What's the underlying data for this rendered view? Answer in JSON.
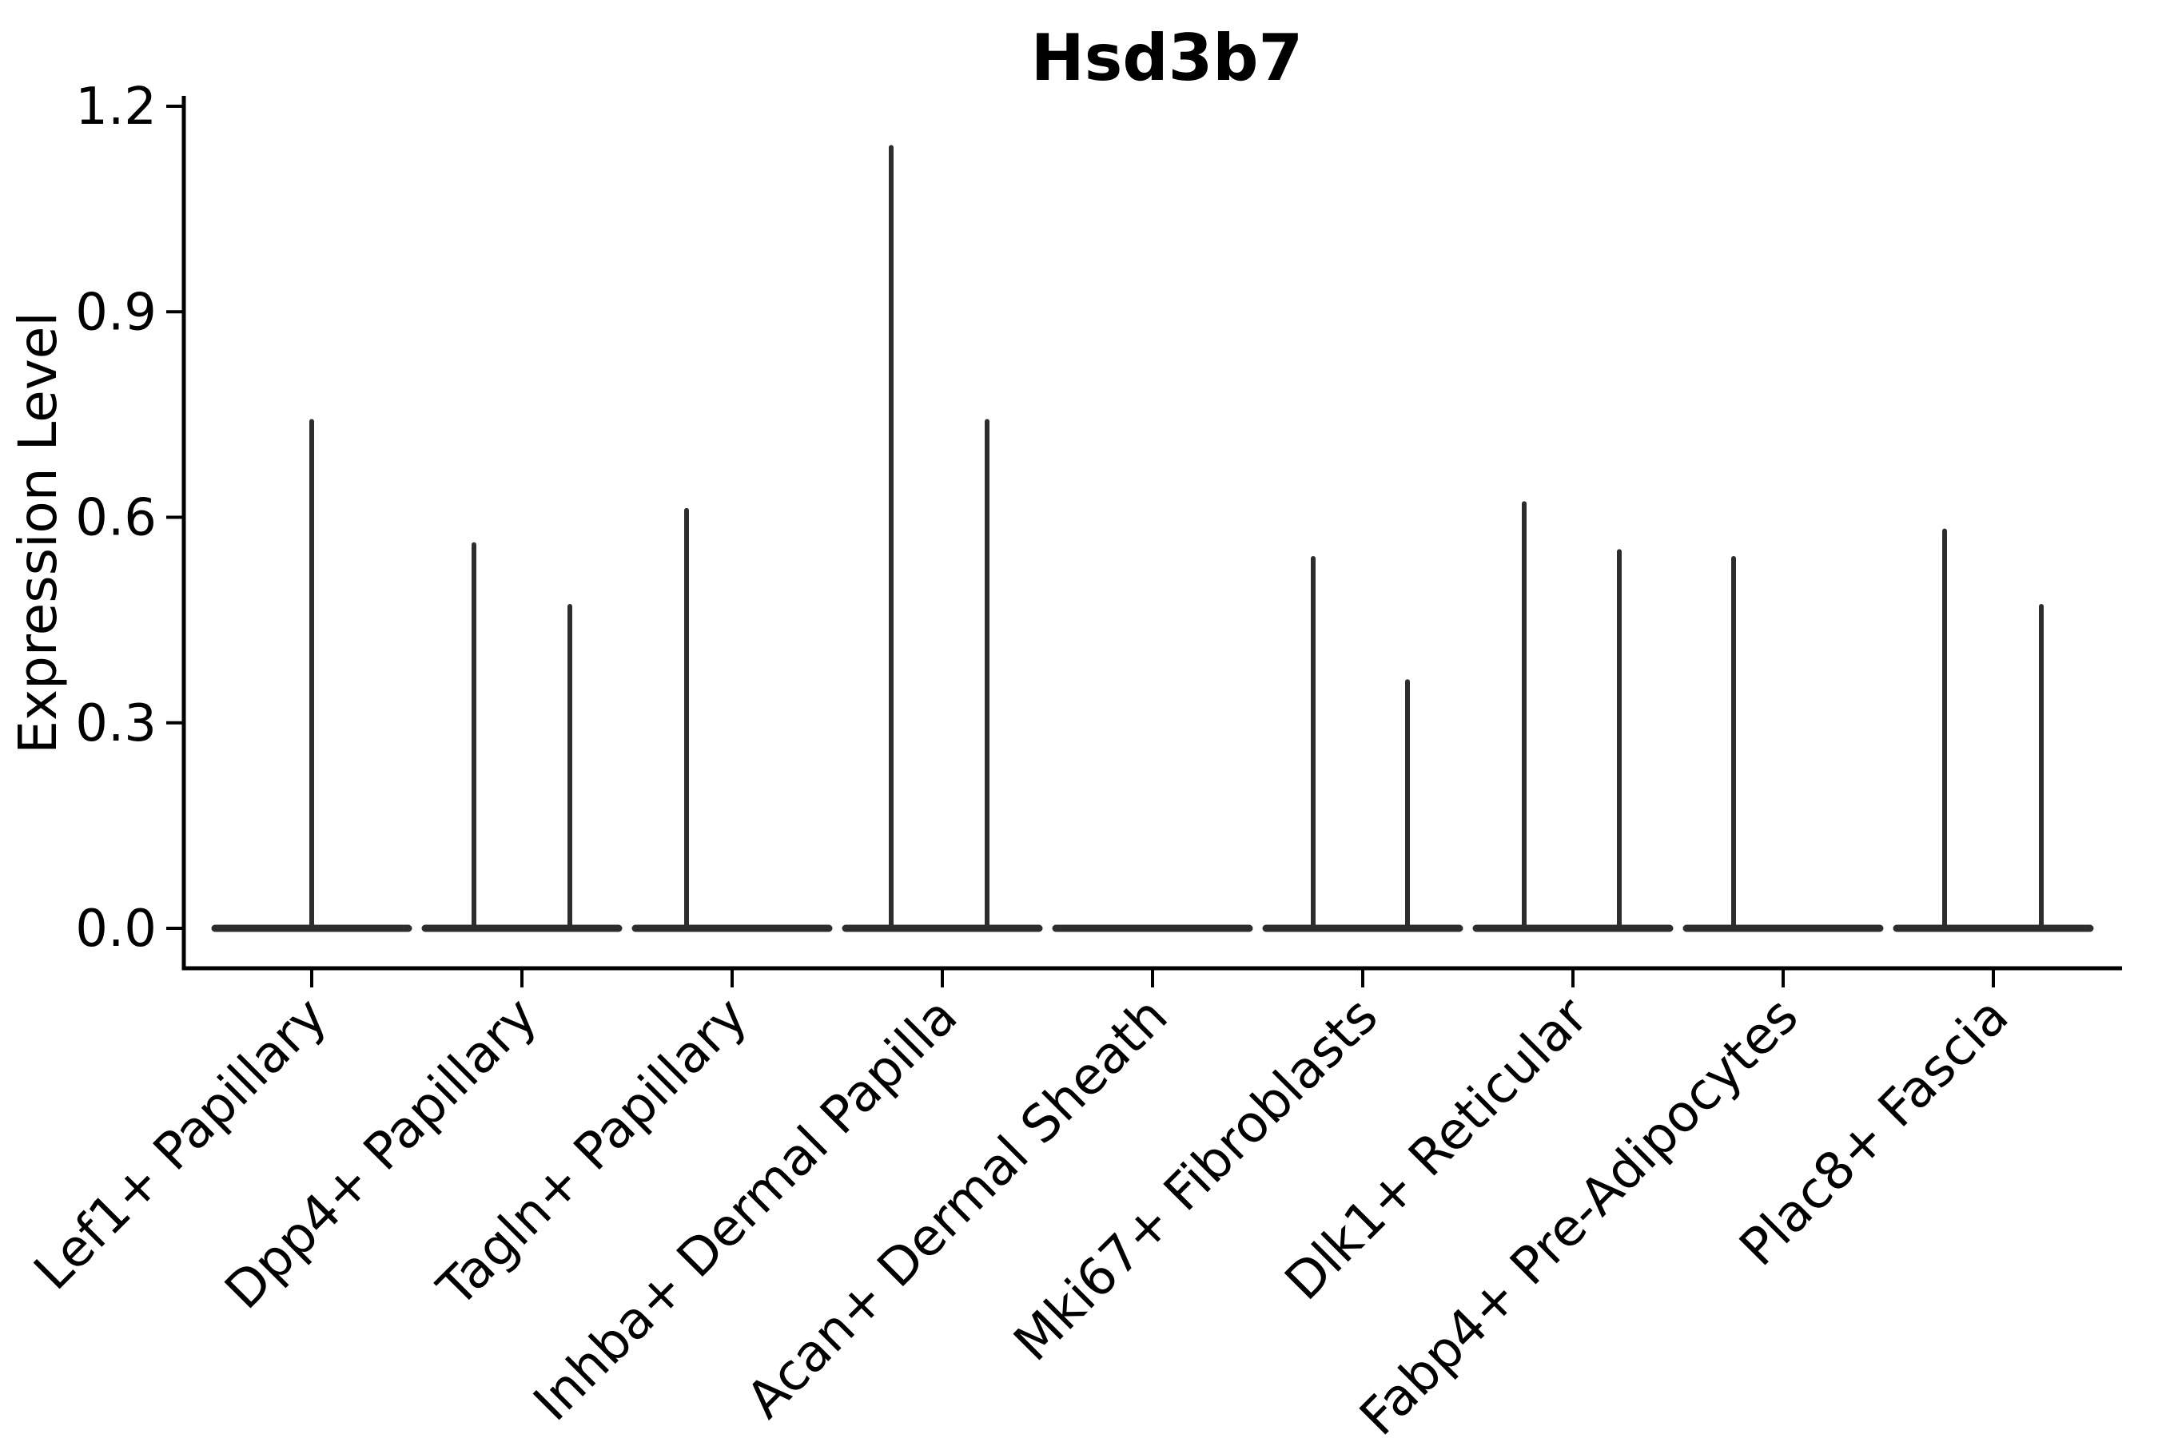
{
  "colors": {
    "violin_stroke": "#2d2d2d",
    "axis": "#000000",
    "background": "#ffffff"
  },
  "chart_data": {
    "type": "violin",
    "title": "Hsd3b7",
    "xlabel": "",
    "ylabel": "Expression Level",
    "yticks": [
      "0.0",
      "0.3",
      "0.6",
      "0.9",
      "1.2"
    ],
    "ytick_values": [
      0.0,
      0.3,
      0.6,
      0.9,
      1.2
    ],
    "ylim": [
      -0.06,
      1.21
    ],
    "grid": false,
    "legend": "none",
    "x_tick_rotation_deg": 45,
    "categories": [
      "Lef1+ Papillary",
      "Dpp4+ Papillary",
      "Tagln+ Papillary",
      "Inhba+ Dermal Papilla",
      "Acan+ Dermal Sheath",
      "Mki67+ Fibroblasts",
      "Dlk1+ Reticular",
      "Fabp4+ Pre-Adipocytes",
      "Plac8+ Fascia"
    ],
    "violins": [
      {
        "category": "Lef1+ Papillary",
        "base_at_zero": true,
        "spikes": [
          {
            "offset": 0,
            "max_value": 0.74
          }
        ]
      },
      {
        "category": "Dpp4+ Papillary",
        "base_at_zero": true,
        "spikes": [
          {
            "offset": -60,
            "max_value": 0.56
          },
          {
            "offset": 60,
            "max_value": 0.47
          }
        ]
      },
      {
        "category": "Tagln+ Papillary",
        "base_at_zero": true,
        "spikes": [
          {
            "offset": -57,
            "max_value": 0.61
          }
        ]
      },
      {
        "category": "Inhba+ Dermal Papilla",
        "base_at_zero": true,
        "spikes": [
          {
            "offset": -64,
            "max_value": 1.14
          },
          {
            "offset": 56,
            "max_value": 0.74
          }
        ]
      },
      {
        "category": "Acan+ Dermal Sheath",
        "base_at_zero": true,
        "spikes": []
      },
      {
        "category": "Mki67+ Fibroblasts",
        "base_at_zero": true,
        "spikes": [
          {
            "offset": -62,
            "max_value": 0.54
          },
          {
            "offset": 56,
            "max_value": 0.36
          }
        ]
      },
      {
        "category": "Dlk1+ Reticular",
        "base_at_zero": true,
        "spikes": [
          {
            "offset": -61,
            "max_value": 0.62
          },
          {
            "offset": 58,
            "max_value": 0.55
          }
        ]
      },
      {
        "category": "Fabp4+ Pre-Adipocytes",
        "base_at_zero": true,
        "spikes": [
          {
            "offset": -62,
            "max_value": 0.54
          }
        ]
      },
      {
        "category": "Plac8+ Fascia",
        "base_at_zero": true,
        "spikes": [
          {
            "offset": -61,
            "max_value": 0.58
          },
          {
            "offset": 60,
            "max_value": 0.47
          }
        ]
      }
    ]
  }
}
